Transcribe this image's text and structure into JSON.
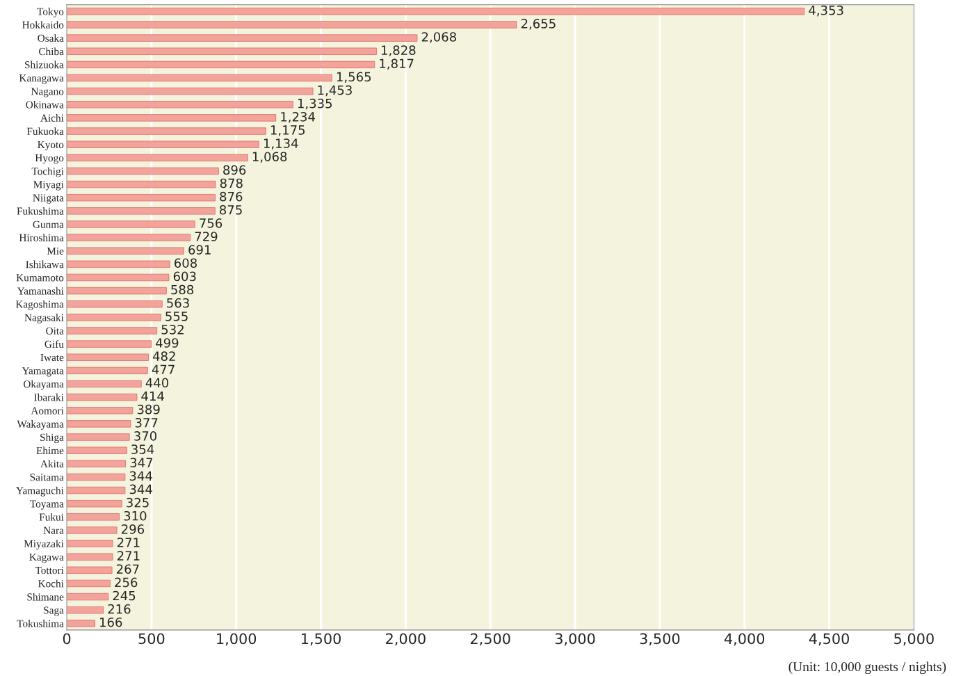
{
  "chart_data": {
    "type": "bar",
    "orientation": "horizontal",
    "categories": [
      "Tokyo",
      "Hokkaido",
      "Osaka",
      "Chiba",
      "Shizuoka",
      "Kanagawa",
      "Nagano",
      "Okinawa",
      "Aichi",
      "Fukuoka",
      "Kyoto",
      "Hyogo",
      "Tochigi",
      "Miyagi",
      "Niigata",
      "Fukushima",
      "Gunma",
      "Hiroshima",
      "Mie",
      "Ishikawa",
      "Kumamoto",
      "Yamanashi",
      "Kagoshima",
      "Nagasaki",
      "Oita",
      "Gifu",
      "Iwate",
      "Yamagata",
      "Okayama",
      "Ibaraki",
      "Aomori",
      "Wakayama",
      "Shiga",
      "Ehime",
      "Akita",
      "Saitama",
      "Yamaguchi",
      "Toyama",
      "Fukui",
      "Nara",
      "Miyazaki",
      "Kagawa",
      "Tottori",
      "Kochi",
      "Shimane",
      "Saga",
      "Tokushima"
    ],
    "values": [
      4353,
      2655,
      2068,
      1828,
      1817,
      1565,
      1453,
      1335,
      1234,
      1175,
      1134,
      1068,
      896,
      878,
      876,
      875,
      756,
      729,
      691,
      608,
      603,
      588,
      563,
      555,
      532,
      499,
      482,
      477,
      440,
      414,
      389,
      377,
      370,
      354,
      347,
      344,
      344,
      325,
      310,
      296,
      271,
      271,
      267,
      256,
      245,
      216,
      166
    ],
    "value_labels": [
      "4,353",
      "2,655",
      "2,068",
      "1,828",
      "1,817",
      "1,565",
      "1,453",
      "1,335",
      "1,234",
      "1,175",
      "1,134",
      "1,068",
      "896",
      "878",
      "876",
      "875",
      "756",
      "729",
      "691",
      "608",
      "603",
      "588",
      "563",
      "555",
      "532",
      "499",
      "482",
      "477",
      "440",
      "414",
      "389",
      "377",
      "370",
      "354",
      "347",
      "344",
      "344",
      "325",
      "310",
      "296",
      "271",
      "271",
      "267",
      "256",
      "245",
      "216",
      "166"
    ],
    "color": "#f2a49c",
    "xlim": [
      0,
      5000
    ],
    "xticks": [
      0,
      500,
      {
        "value": 1000,
        "label": "1,000"
      },
      {
        "value": 1500,
        "label": "1,500"
      },
      {
        "value": 2000,
        "label": "2,000"
      },
      {
        "value": 2500,
        "label": "2,500"
      },
      {
        "value": 3000,
        "label": "3,000"
      },
      {
        "value": 3500,
        "label": "3,500"
      },
      {
        "value": 4000,
        "label": "4,000"
      },
      {
        "value": 4500,
        "label": "4,500"
      },
      {
        "value": 5000,
        "label": "5,000"
      }
    ],
    "grid": "x",
    "legend": false,
    "annotations": [
      "(Unit: 10,000 guests / nights)"
    ]
  }
}
